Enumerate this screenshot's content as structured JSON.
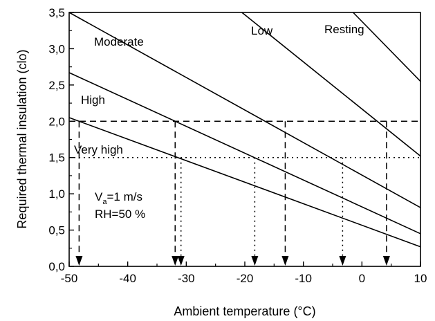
{
  "chart_data": {
    "type": "line",
    "title": "",
    "xlabel": "Ambient temperature (°C)",
    "ylabel": "Required thermal insulation (clo)",
    "xlim": [
      -50,
      10
    ],
    "ylim": [
      0.0,
      3.5
    ],
    "x_ticks": [
      "-50",
      "-40",
      "-30",
      "-20",
      "-10",
      "0",
      "10"
    ],
    "y_ticks": [
      "0,0",
      "0,5",
      "1,0",
      "1,5",
      "2,0",
      "2,5",
      "3,0",
      "3,5"
    ],
    "grid": false,
    "series": [
      {
        "name": "Very high",
        "x": [
          -50,
          10
        ],
        "y": [
          2.05,
          0.27
        ]
      },
      {
        "name": "High",
        "x": [
          -50,
          10
        ],
        "y": [
          2.67,
          0.45
        ]
      },
      {
        "name": "Moderate",
        "x": [
          -50,
          10
        ],
        "y": [
          3.5,
          0.81
        ]
      },
      {
        "name": "Low",
        "x": [
          -20.5,
          10
        ],
        "y": [
          3.5,
          1.52
        ]
      },
      {
        "name": "Resting",
        "x": [
          -1.5,
          10
        ],
        "y": [
          3.5,
          2.55
        ]
      }
    ],
    "reference_lines": [
      {
        "style": "dashed",
        "y": 2.0,
        "arrows_x": [
          -48.3,
          -31.9,
          -13.1,
          4.2
        ]
      },
      {
        "style": "dotted",
        "y": 1.5,
        "arrows_x": [
          -30.9,
          -18.3,
          -3.3
        ]
      }
    ],
    "annotations": {
      "line1_main": "V",
      "line1_sub": "a",
      "line1_rest": "=1 m/s",
      "line2": "RH=50 %"
    }
  }
}
